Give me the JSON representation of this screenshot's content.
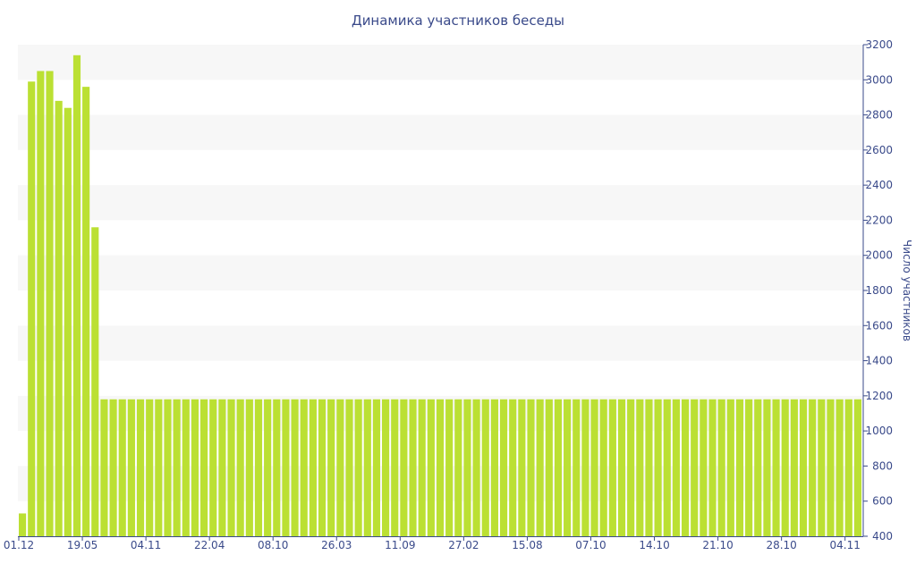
{
  "chart_data": {
    "type": "bar",
    "title": "Динамика участников беседы",
    "ylabel": "Число участников",
    "xlabel": "",
    "ylim": [
      400,
      3200
    ],
    "y_ticks": [
      400,
      600,
      800,
      1000,
      1200,
      1400,
      1600,
      1800,
      2000,
      2200,
      2400,
      2600,
      2800,
      3000,
      3200
    ],
    "y_axis_side": "right",
    "x_tick_labels": [
      {
        "index": 0,
        "label": "01.12"
      },
      {
        "index": 7,
        "label": "19.05"
      },
      {
        "index": 14,
        "label": "04.11"
      },
      {
        "index": 21,
        "label": "22.04"
      },
      {
        "index": 28,
        "label": "08.10"
      },
      {
        "index": 35,
        "label": "26.03"
      },
      {
        "index": 42,
        "label": "11.09"
      },
      {
        "index": 49,
        "label": "27.02"
      },
      {
        "index": 56,
        "label": "15.08"
      },
      {
        "index": 63,
        "label": "07.10"
      },
      {
        "index": 70,
        "label": "14.10"
      },
      {
        "index": 77,
        "label": "21.10"
      },
      {
        "index": 84,
        "label": "28.10"
      },
      {
        "index": 91,
        "label": "04.11"
      }
    ],
    "grid": "alternating horizontal bands",
    "bar_color": "#bbe033",
    "band_color": "#f7f7f7",
    "text_color": "#3a4a8a",
    "values": [
      530,
      2990,
      3050,
      3050,
      2880,
      2840,
      3140,
      2960,
      2160,
      1180,
      1180,
      1180,
      1180,
      1180,
      1180,
      1180,
      1180,
      1180,
      1180,
      1180,
      1180,
      1180,
      1180,
      1180,
      1180,
      1180,
      1180,
      1180,
      1180,
      1180,
      1180,
      1180,
      1180,
      1180,
      1180,
      1180,
      1180,
      1180,
      1180,
      1180,
      1180,
      1180,
      1180,
      1180,
      1180,
      1180,
      1180,
      1180,
      1180,
      1180,
      1180,
      1180,
      1180,
      1180,
      1180,
      1180,
      1180,
      1180,
      1180,
      1180,
      1180,
      1180,
      1180,
      1180,
      1180,
      1180,
      1180,
      1180,
      1180,
      1180,
      1180,
      1180,
      1180,
      1180,
      1180,
      1180,
      1180,
      1180,
      1180,
      1180,
      1180,
      1180,
      1180,
      1180,
      1180,
      1180,
      1180,
      1180,
      1180,
      1180,
      1180,
      1180,
      1180
    ]
  }
}
